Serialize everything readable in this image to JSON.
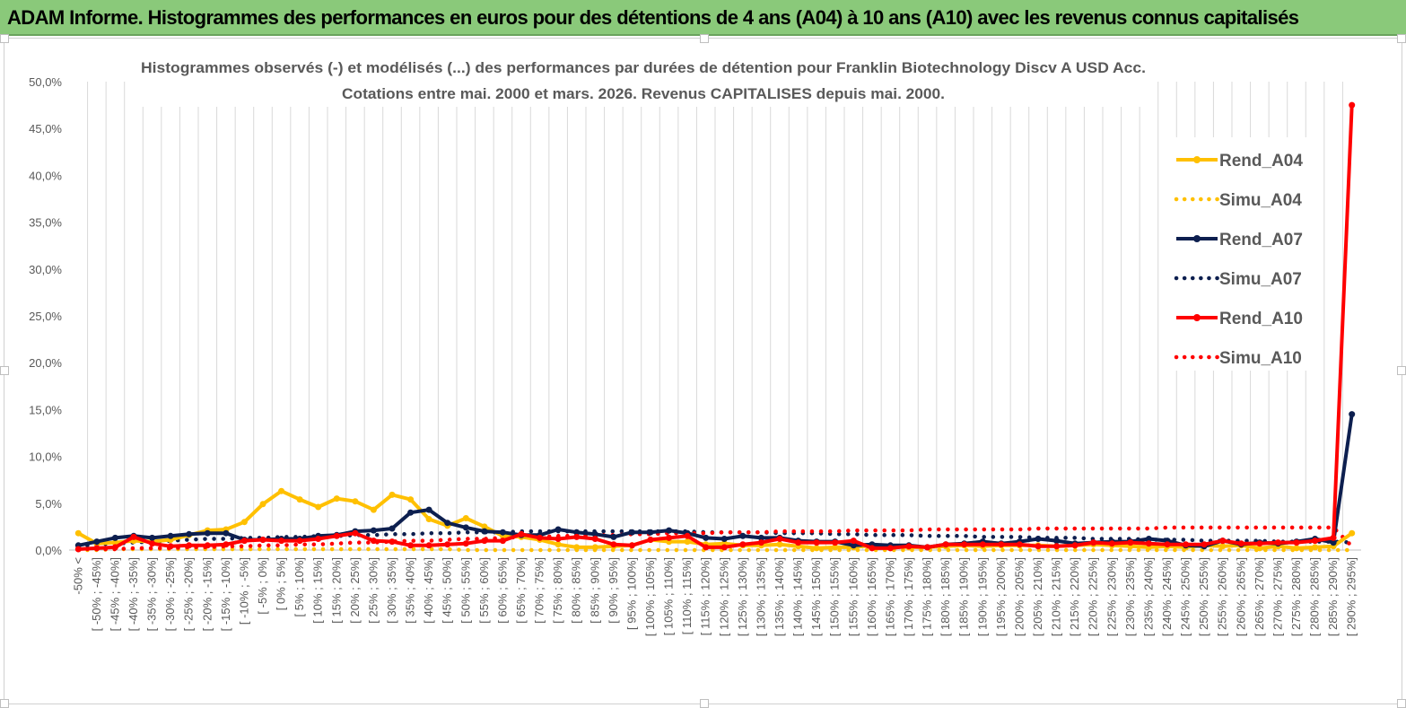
{
  "header": {
    "title": "ADAM Informe. Histogrammes des performances en euros pour des détentions de 4 ans (A04) à 10 ans (A10) avec les revenus connus capitalisés"
  },
  "chart_data": {
    "type": "line",
    "title": "Histogrammes observés (-) et modélisés (...) des performances par durées de détention pour Franklin Biotechnology Discv A USD Acc.",
    "subtitle": "Cotations entre mai. 2000 et mars. 2026. Revenus CAPITALISES depuis mai. 2000.",
    "xlabel": "",
    "ylabel": "",
    "ylim": [
      0,
      50
    ],
    "y_ticks": [
      "0,0%",
      "5,0%",
      "10,0%",
      "15,0%",
      "20,0%",
      "25,0%",
      "30,0%",
      "35,0%",
      "40,0%",
      "45,0%",
      "50,0%"
    ],
    "grid": "vertical",
    "legend_position": "right",
    "categories": [
      "-50% <",
      "[ -50% ; -45%]",
      "[ -45% ; -40%]",
      "[ -40% ; -35%]",
      "[ -35% ; -30%]",
      "[ -30% ; -25%]",
      "[ -25% ; -20%]",
      "[ -20% ; -15%]",
      "[ -15% ; -10%]",
      "[ -10% ; -5%]",
      "[ -5% ; 0%]",
      "[ 0% ; 5%]",
      "[ 5% ; 10%]",
      "[ 10% ; 15%]",
      "[ 15% ; 20%]",
      "[ 20% ; 25%]",
      "[ 25% ; 30%]",
      "[ 30% ; 35%]",
      "[ 35% ; 40%]",
      "[ 40% ; 45%]",
      "[ 45% ; 50%]",
      "[ 50% ; 55%]",
      "[ 55% ; 60%]",
      "[ 60% ; 65%]",
      "[ 65% ; 70%]",
      "[ 70% ; 75%]",
      "[ 75% ; 80%]",
      "[ 80% ; 85%]",
      "[ 85% ; 90%]",
      "[ 90% ; 95%]",
      "[ 95% ; 100%]",
      "[ 100% ; 105%]",
      "[ 105% ; 110%]",
      "[ 110% ; 115%]",
      "[ 115% ; 120%]",
      "[ 120% ; 125%]",
      "[ 125% ; 130%]",
      "[ 130% ; 135%]",
      "[ 135% ; 140%]",
      "[ 140% ; 145%]",
      "[ 145% ; 150%]",
      "[ 150% ; 155%]",
      "[ 155% ; 160%]",
      "[ 160% ; 165%]",
      "[ 165% ; 170%]",
      "[ 170% ; 175%]",
      "[ 175% ; 180%]",
      "[ 180% ; 185%]",
      "[ 185% ; 190%]",
      "[ 190% ; 195%]",
      "[ 195% ; 200%]",
      "[ 200% ; 205%]",
      "[ 205% ; 210%]",
      "[ 210% ; 215%]",
      "[ 215% ; 220%]",
      "[ 220% ; 225%]",
      "[ 225% ; 230%]",
      "[ 230% ; 235%]",
      "[ 235% ; 240%]",
      "[ 240% ; 245%]",
      "[ 245% ; 250%]",
      "[ 250% ; 255%]",
      "[ 255% ; 260%]",
      "[ 260% ; 265%]",
      "[ 265% ; 270%]",
      "[ 270% ; 275%]",
      "[ 275% ; 280%]",
      "[ 280% ; 285%]",
      "[ 285% ; 290%]",
      "[ 290% ; 295%]"
    ],
    "series": [
      {
        "name": "Rend_A04",
        "style": "solid",
        "color": "#ffc000",
        "values": [
          1.8,
          0.7,
          0.8,
          1.0,
          0.9,
          1.1,
          1.6,
          2.1,
          2.2,
          3.0,
          4.9,
          6.3,
          5.4,
          4.6,
          5.5,
          5.2,
          4.3,
          5.9,
          5.4,
          3.3,
          2.6,
          3.4,
          2.5,
          1.5,
          1.4,
          1.1,
          0.6,
          0.3,
          0.3,
          0.4,
          0.5,
          1.1,
          0.9,
          0.9,
          0.6,
          0.7,
          0.5,
          0.5,
          0.6,
          0.4,
          0.2,
          0.3,
          0.3,
          0.5,
          0.4,
          0.3,
          0.3,
          0.4,
          0.5,
          0.4,
          0.5,
          0.5,
          0.5,
          0.4,
          0.5,
          0.6,
          0.5,
          0.4,
          0.3,
          0.4,
          0.3,
          0.5,
          0.4,
          0.5,
          0.2,
          0.4,
          0.2,
          0.3,
          0.4,
          1.8
        ]
      },
      {
        "name": "Simu_A04",
        "style": "dotted",
        "color": "#ffc000",
        "values": [
          0.0,
          0.0,
          0.1,
          0.1,
          0.1,
          0.1,
          0.1,
          0.1,
          0.1,
          0.1,
          0.1,
          0.1,
          0.1,
          0.1,
          0.1,
          0.1,
          0.1,
          0.1,
          0.1,
          0.1,
          0.1,
          0.0,
          0.0,
          0.0,
          0.0,
          0.0,
          0.0,
          0.0,
          0.0,
          0.0,
          0.0,
          0.0,
          0.0,
          0.0,
          0.0,
          0.0,
          0.0,
          0.0,
          0.0,
          0.0,
          0.0,
          0.0,
          0.0,
          0.0,
          0.0,
          0.0,
          0.0,
          0.0,
          0.0,
          0.0,
          0.0,
          0.0,
          0.0,
          0.0,
          0.0,
          0.0,
          0.0,
          0.0,
          0.0,
          0.0,
          0.0,
          0.0,
          0.0,
          0.0,
          0.0,
          0.0,
          0.0,
          0.0,
          0.0,
          0.0
        ]
      },
      {
        "name": "Rend_A07",
        "style": "solid",
        "color": "#0d1f4f",
        "values": [
          0.5,
          0.9,
          1.3,
          1.5,
          1.3,
          1.5,
          1.7,
          1.8,
          1.8,
          1.1,
          1.1,
          1.2,
          1.2,
          1.5,
          1.6,
          2.0,
          2.1,
          2.3,
          4.0,
          4.3,
          2.9,
          2.4,
          2.0,
          1.9,
          1.6,
          1.6,
          2.2,
          1.9,
          1.7,
          1.4,
          1.9,
          1.9,
          2.1,
          1.8,
          1.3,
          1.2,
          1.5,
          1.3,
          1.3,
          1.0,
          0.9,
          0.9,
          0.5,
          0.6,
          0.5,
          0.5,
          0.3,
          0.6,
          0.7,
          0.9,
          0.7,
          0.9,
          1.2,
          1.0,
          0.7,
          0.8,
          0.9,
          0.9,
          1.2,
          1.0,
          0.5,
          0.4,
          1.0,
          0.6,
          0.8,
          0.7,
          0.9,
          1.2,
          0.8,
          14.5
        ]
      },
      {
        "name": "Simu_A07",
        "style": "dotted",
        "color": "#0d1f4f",
        "values": [
          0.4,
          0.6,
          0.7,
          0.8,
          0.9,
          1.0,
          1.1,
          1.2,
          1.2,
          1.3,
          1.3,
          1.4,
          1.4,
          1.5,
          1.5,
          1.6,
          1.6,
          1.7,
          1.7,
          1.8,
          1.8,
          1.9,
          1.9,
          1.9,
          2.0,
          2.0,
          2.0,
          2.0,
          2.0,
          2.0,
          2.0,
          2.0,
          2.0,
          2.0,
          1.9,
          1.9,
          1.9,
          1.9,
          1.8,
          1.8,
          1.8,
          1.7,
          1.7,
          1.6,
          1.6,
          1.6,
          1.5,
          1.5,
          1.5,
          1.4,
          1.4,
          1.4,
          1.3,
          1.3,
          1.3,
          1.2,
          1.2,
          1.2,
          1.1,
          1.1,
          1.1,
          1.0,
          1.0,
          1.0,
          1.0,
          0.9,
          0.9,
          0.9,
          0.9,
          0.8
        ]
      },
      {
        "name": "Rend_A10",
        "style": "solid",
        "color": "#ff0000",
        "values": [
          0.1,
          0.2,
          0.3,
          1.4,
          0.7,
          0.4,
          0.5,
          0.5,
          0.6,
          1.0,
          1.1,
          1.0,
          1.0,
          1.2,
          1.5,
          1.8,
          1.0,
          0.9,
          0.5,
          0.5,
          0.6,
          0.7,
          1.0,
          1.0,
          1.7,
          1.3,
          1.2,
          1.4,
          1.2,
          0.6,
          0.5,
          1.1,
          1.3,
          1.5,
          0.3,
          0.3,
          0.6,
          0.8,
          1.2,
          0.8,
          0.8,
          0.8,
          1.0,
          0.2,
          0.2,
          0.4,
          0.3,
          0.6,
          0.6,
          0.6,
          0.6,
          0.6,
          0.4,
          0.4,
          0.5,
          0.8,
          0.7,
          0.8,
          0.7,
          0.6,
          0.6,
          0.6,
          1.0,
          0.7,
          0.7,
          0.8,
          0.8,
          1.0,
          1.3,
          47.5
        ]
      },
      {
        "name": "Simu_A10",
        "style": "dotted",
        "color": "#ff0000",
        "values": [
          0.1,
          0.1,
          0.1,
          0.2,
          0.2,
          0.2,
          0.3,
          0.3,
          0.4,
          0.4,
          0.5,
          0.5,
          0.6,
          0.6,
          0.7,
          0.8,
          0.8,
          0.9,
          1.0,
          1.0,
          1.1,
          1.2,
          1.2,
          1.3,
          1.4,
          1.4,
          1.5,
          1.5,
          1.6,
          1.6,
          1.7,
          1.7,
          1.8,
          1.8,
          1.8,
          1.9,
          1.9,
          1.9,
          2.0,
          2.0,
          2.0,
          2.0,
          2.1,
          2.1,
          2.1,
          2.1,
          2.2,
          2.2,
          2.2,
          2.2,
          2.2,
          2.2,
          2.3,
          2.3,
          2.3,
          2.3,
          2.3,
          2.3,
          2.3,
          2.4,
          2.4,
          2.4,
          2.4,
          2.4,
          2.4,
          2.4,
          2.4,
          2.4,
          2.4,
          0.4
        ]
      }
    ]
  }
}
